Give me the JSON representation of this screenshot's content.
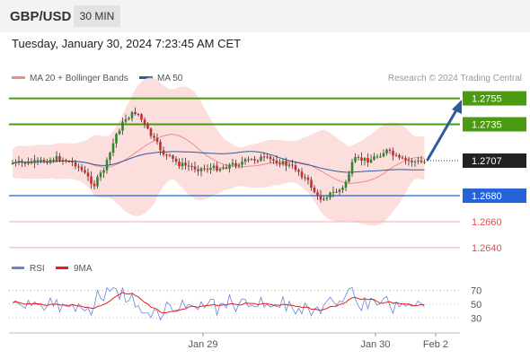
{
  "header": {
    "symbol": "GBP/USD",
    "interval": "30 MIN"
  },
  "datetime": "Tuesday, January 30, 2024 7:23:45 AM CET",
  "legend": {
    "ma20": {
      "label": "MA 20 + Bollinger Bands",
      "color": "#f28b8b"
    },
    "ma50": {
      "label": "MA 50",
      "color": "#2d5b9e"
    }
  },
  "copyright": "Research © 2024 Trading Central",
  "rsi_legend": {
    "rsi": {
      "label": "RSI",
      "color": "#6b84d9"
    },
    "ma9": {
      "label": "9MA",
      "color": "#e81c1c"
    }
  },
  "colors": {
    "target_green": "#4c9a12",
    "pivot_blue": "#2563d9",
    "support_red": "#e84a4a",
    "current_bg": "#222222",
    "candle_up": "#2a8a2a",
    "candle_down": "#cc2b2b",
    "band_fill": "#fbd9d6",
    "arrow": "#2d5b9e"
  },
  "chart_data": [
    {
      "type": "candlestick",
      "ylim": [
        1.2633,
        1.2763
      ],
      "x_ticks": [
        "Jan 29",
        "Jan 30",
        "Feb 2"
      ],
      "levels": [
        {
          "value": "1.2755",
          "kind": "target"
        },
        {
          "value": "1.2735",
          "kind": "target"
        },
        {
          "value": "1.2707",
          "kind": "current"
        },
        {
          "value": "1.2680",
          "kind": "pivot"
        },
        {
          "value": "1.2660",
          "kind": "support"
        },
        {
          "value": "1.2640",
          "kind": "support"
        }
      ],
      "series": [
        {
          "name": "MA 20 + Bollinger Bands"
        },
        {
          "name": "MA 50"
        }
      ]
    },
    {
      "type": "line",
      "title": "RSI",
      "ylim": [
        20,
        80
      ],
      "y_ticks": [
        "70",
        "50",
        "30"
      ],
      "series": [
        {
          "name": "RSI"
        },
        {
          "name": "9MA"
        }
      ]
    }
  ]
}
